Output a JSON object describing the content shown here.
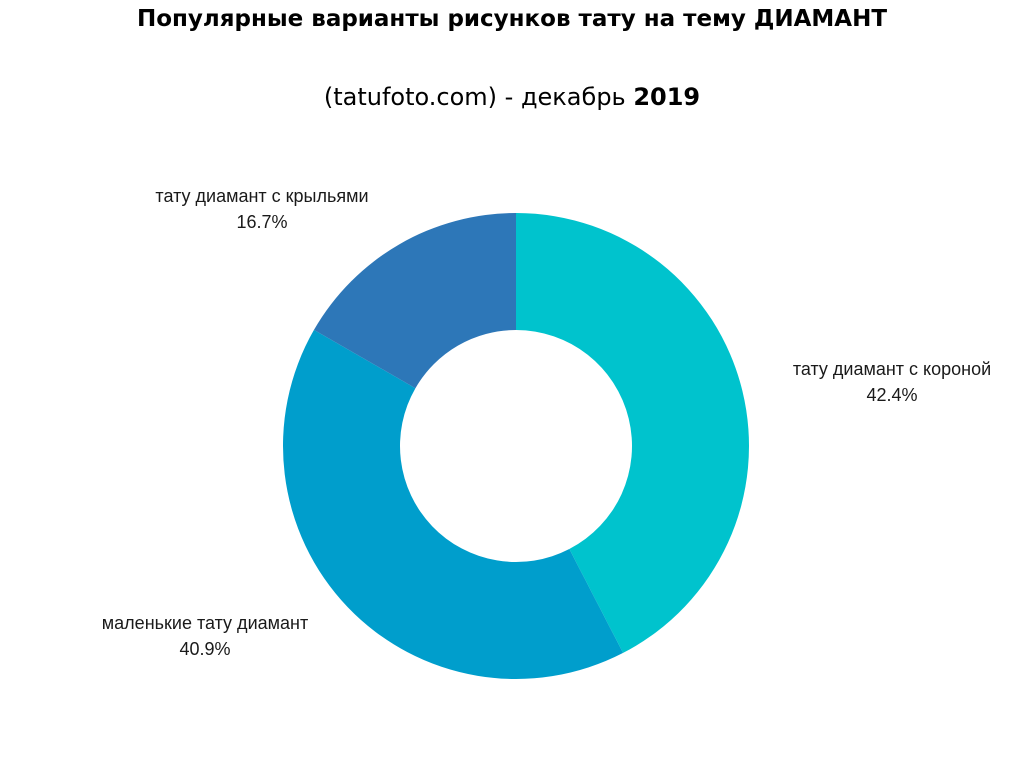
{
  "header": {
    "title": "Популярные варианты рисунков тату на тему ДИАМАНТ",
    "subtitle_source": "(tatufoto.com)",
    "subtitle_sep": " - декабрь ",
    "subtitle_year": "2019"
  },
  "chart_data": {
    "type": "pie",
    "donut": true,
    "title": "Популярные варианты рисунков тату на тему ДИАМАНТ",
    "subtitle": "(tatufoto.com) - декабрь 2019",
    "legend": "none",
    "slices": [
      {
        "label": "тату диамант с короной",
        "value": 42.4,
        "value_label": "42.4%",
        "color": "#00C3CD"
      },
      {
        "label": "маленькие тату диамант",
        "value": 40.9,
        "value_label": "40.9%",
        "color": "#009ECC"
      },
      {
        "label": "тату диамант с крыльями",
        "value": 16.7,
        "value_label": "16.7%",
        "color": "#2D77B8"
      }
    ]
  }
}
